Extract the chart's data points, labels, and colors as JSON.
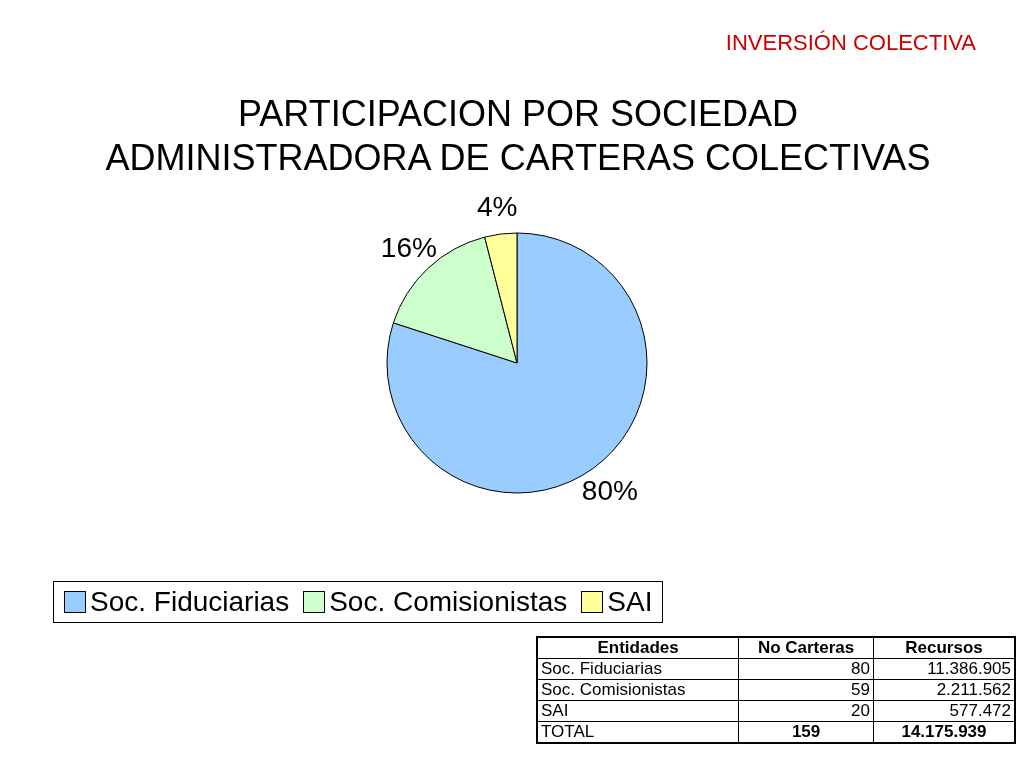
{
  "chart_data": [
    {
      "type": "pie",
      "title": "PARTICIPACION POR SOCIEDAD ADMINISTRADORA DE CARTERAS COLECTIVAS",
      "subtitle": "INVERSIÓN COLECTIVA",
      "categories": [
        "Soc. Fiduciarias",
        "Soc. Comisionistas",
        "SAI"
      ],
      "values": [
        80,
        16,
        4
      ],
      "colors": [
        "#99ccff",
        "#ccffcc",
        "#ffff99"
      ],
      "value_labels": [
        "80%",
        "16%",
        "4%"
      ],
      "legend": "bottom"
    },
    {
      "type": "other",
      "annotations": [
        "Entidades",
        "No Carteras",
        "Recursos",
        "Soc. Fiduciarias",
        "80",
        "11.386.905",
        "Soc. Comisionistas",
        "59",
        "2.211.562",
        "SAI",
        "20",
        "577.472",
        "TOTAL",
        "159",
        "14.175.939"
      ]
    }
  ]
}
